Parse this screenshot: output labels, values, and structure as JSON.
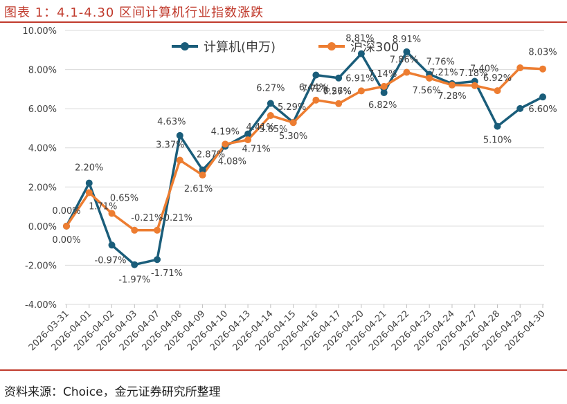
{
  "header": {
    "title": "图表 1：4.1-4.30 区间计算机行业指数涨跌"
  },
  "footer": {
    "source": "资料来源：Choice，金元证券研究所整理"
  },
  "colors": {
    "series1": "#1a5d7a",
    "series2": "#ed7d31",
    "accent": "#c0392b"
  },
  "chart_data": {
    "type": "line",
    "title": "",
    "xlabel": "",
    "ylabel": "",
    "ylim": [
      -4,
      10
    ],
    "yticks": [
      "-4.00%",
      "-2.00%",
      "0.00%",
      "2.00%",
      "4.00%",
      "6.00%",
      "8.00%",
      "10.00%"
    ],
    "grid": true,
    "legend_position": "top",
    "categories": [
      "2026-03-31",
      "2026-04-01",
      "2026-04-02",
      "2026-04-03",
      "2026-04-07",
      "2026-04-08",
      "2026-04-09",
      "2026-04-10",
      "2026-04-13",
      "2026-04-14",
      "2026-04-15",
      "2026-04-16",
      "2026-04-17",
      "2026-04-20",
      "2026-04-21",
      "2026-04-22",
      "2026-04-23",
      "2026-04-24",
      "2026-04-27",
      "2026-04-28",
      "2026-04-29",
      "2026-04-30"
    ],
    "series": [
      {
        "name": "计算机(申万)",
        "values": [
          0.0,
          2.2,
          -0.97,
          -1.97,
          -1.71,
          4.63,
          2.87,
          4.08,
          4.71,
          6.27,
          5.3,
          7.72,
          7.57,
          8.81,
          6.82,
          8.91,
          7.76,
          7.28,
          7.4,
          5.1,
          6.01,
          6.6
        ],
        "labels": [
          "0.00%",
          "2.20%",
          "-0.97%",
          "-1.97%",
          "-1.71%",
          "4.63%",
          "2.87%",
          "4.08%",
          "4.71%",
          "6.27%",
          "5.30%",
          "7.72%",
          "7.57%",
          "8.81%",
          "6.82%",
          "8.91%",
          "7.76%",
          "7.28%",
          "7.40%",
          "5.10%",
          "6.01%",
          "6.60%"
        ]
      },
      {
        "name": "沪深300",
        "values": [
          0.0,
          1.71,
          0.65,
          -0.21,
          -0.21,
          3.37,
          2.61,
          4.19,
          4.41,
          5.65,
          5.29,
          6.44,
          6.26,
          6.91,
          7.14,
          7.86,
          7.56,
          7.21,
          7.18,
          6.92,
          8.09,
          8.03
        ],
        "labels": [
          "0.00%",
          "1.71%",
          "0.65%",
          "-0.21%",
          "-0.21%",
          "3.37%",
          "2.61%",
          "4.19%",
          "4.41%",
          "5.65%",
          "5.29%",
          "6.44%",
          "6.26%",
          "6.91%",
          "7.14%",
          "7.86%",
          "7.56%",
          "7.21%",
          "7.18%",
          "6.92%",
          "8.09%",
          "8.03%"
        ]
      }
    ]
  }
}
